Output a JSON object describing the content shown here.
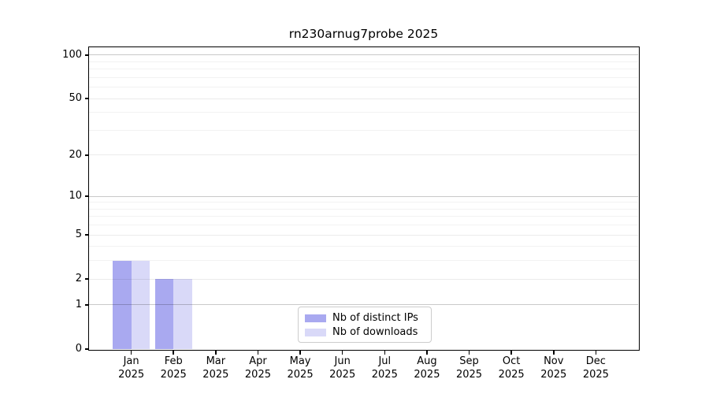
{
  "title": "rn230arnug7probe 2025",
  "chart_data": {
    "type": "bar",
    "title": "rn230arnug7probe 2025",
    "x_months": [
      "Jan",
      "Feb",
      "Mar",
      "Apr",
      "May",
      "Jun",
      "Jul",
      "Aug",
      "Sep",
      "Oct",
      "Nov",
      "Dec"
    ],
    "x_year": "2025",
    "series": [
      {
        "name": "Nb of distinct IPs",
        "color": "#a9a9f0",
        "values": [
          3,
          2,
          0,
          0,
          0,
          0,
          0,
          0,
          0,
          0,
          0,
          0
        ]
      },
      {
        "name": "Nb of downloads",
        "color": "#d9d9f8",
        "values": [
          3,
          2,
          0,
          0,
          0,
          0,
          0,
          0,
          0,
          0,
          0,
          0
        ]
      }
    ],
    "y_scale": "log1p",
    "y_major_ticks": [
      0,
      1,
      2,
      5,
      10,
      20,
      50,
      100
    ],
    "y_minor_ticks": [
      3,
      4,
      6,
      7,
      8,
      9,
      30,
      40,
      60,
      70,
      80,
      90
    ],
    "ylim": [
      0,
      113
    ],
    "grid": true,
    "legend_position": "inside-bottom-center"
  },
  "colors": {
    "background": "#ffffff",
    "axis_frame": "#000000",
    "text": "#000000",
    "bar_distinct_ips": "#a9a9f0",
    "bar_downloads": "#d9d9f8",
    "grid_decade": "rgba(0,0,0,0.21)",
    "grid_major": "rgba(0,0,0,0.08)",
    "grid_minor": "rgba(0,0,0,0.05)",
    "legend_border": "#cccccc"
  }
}
